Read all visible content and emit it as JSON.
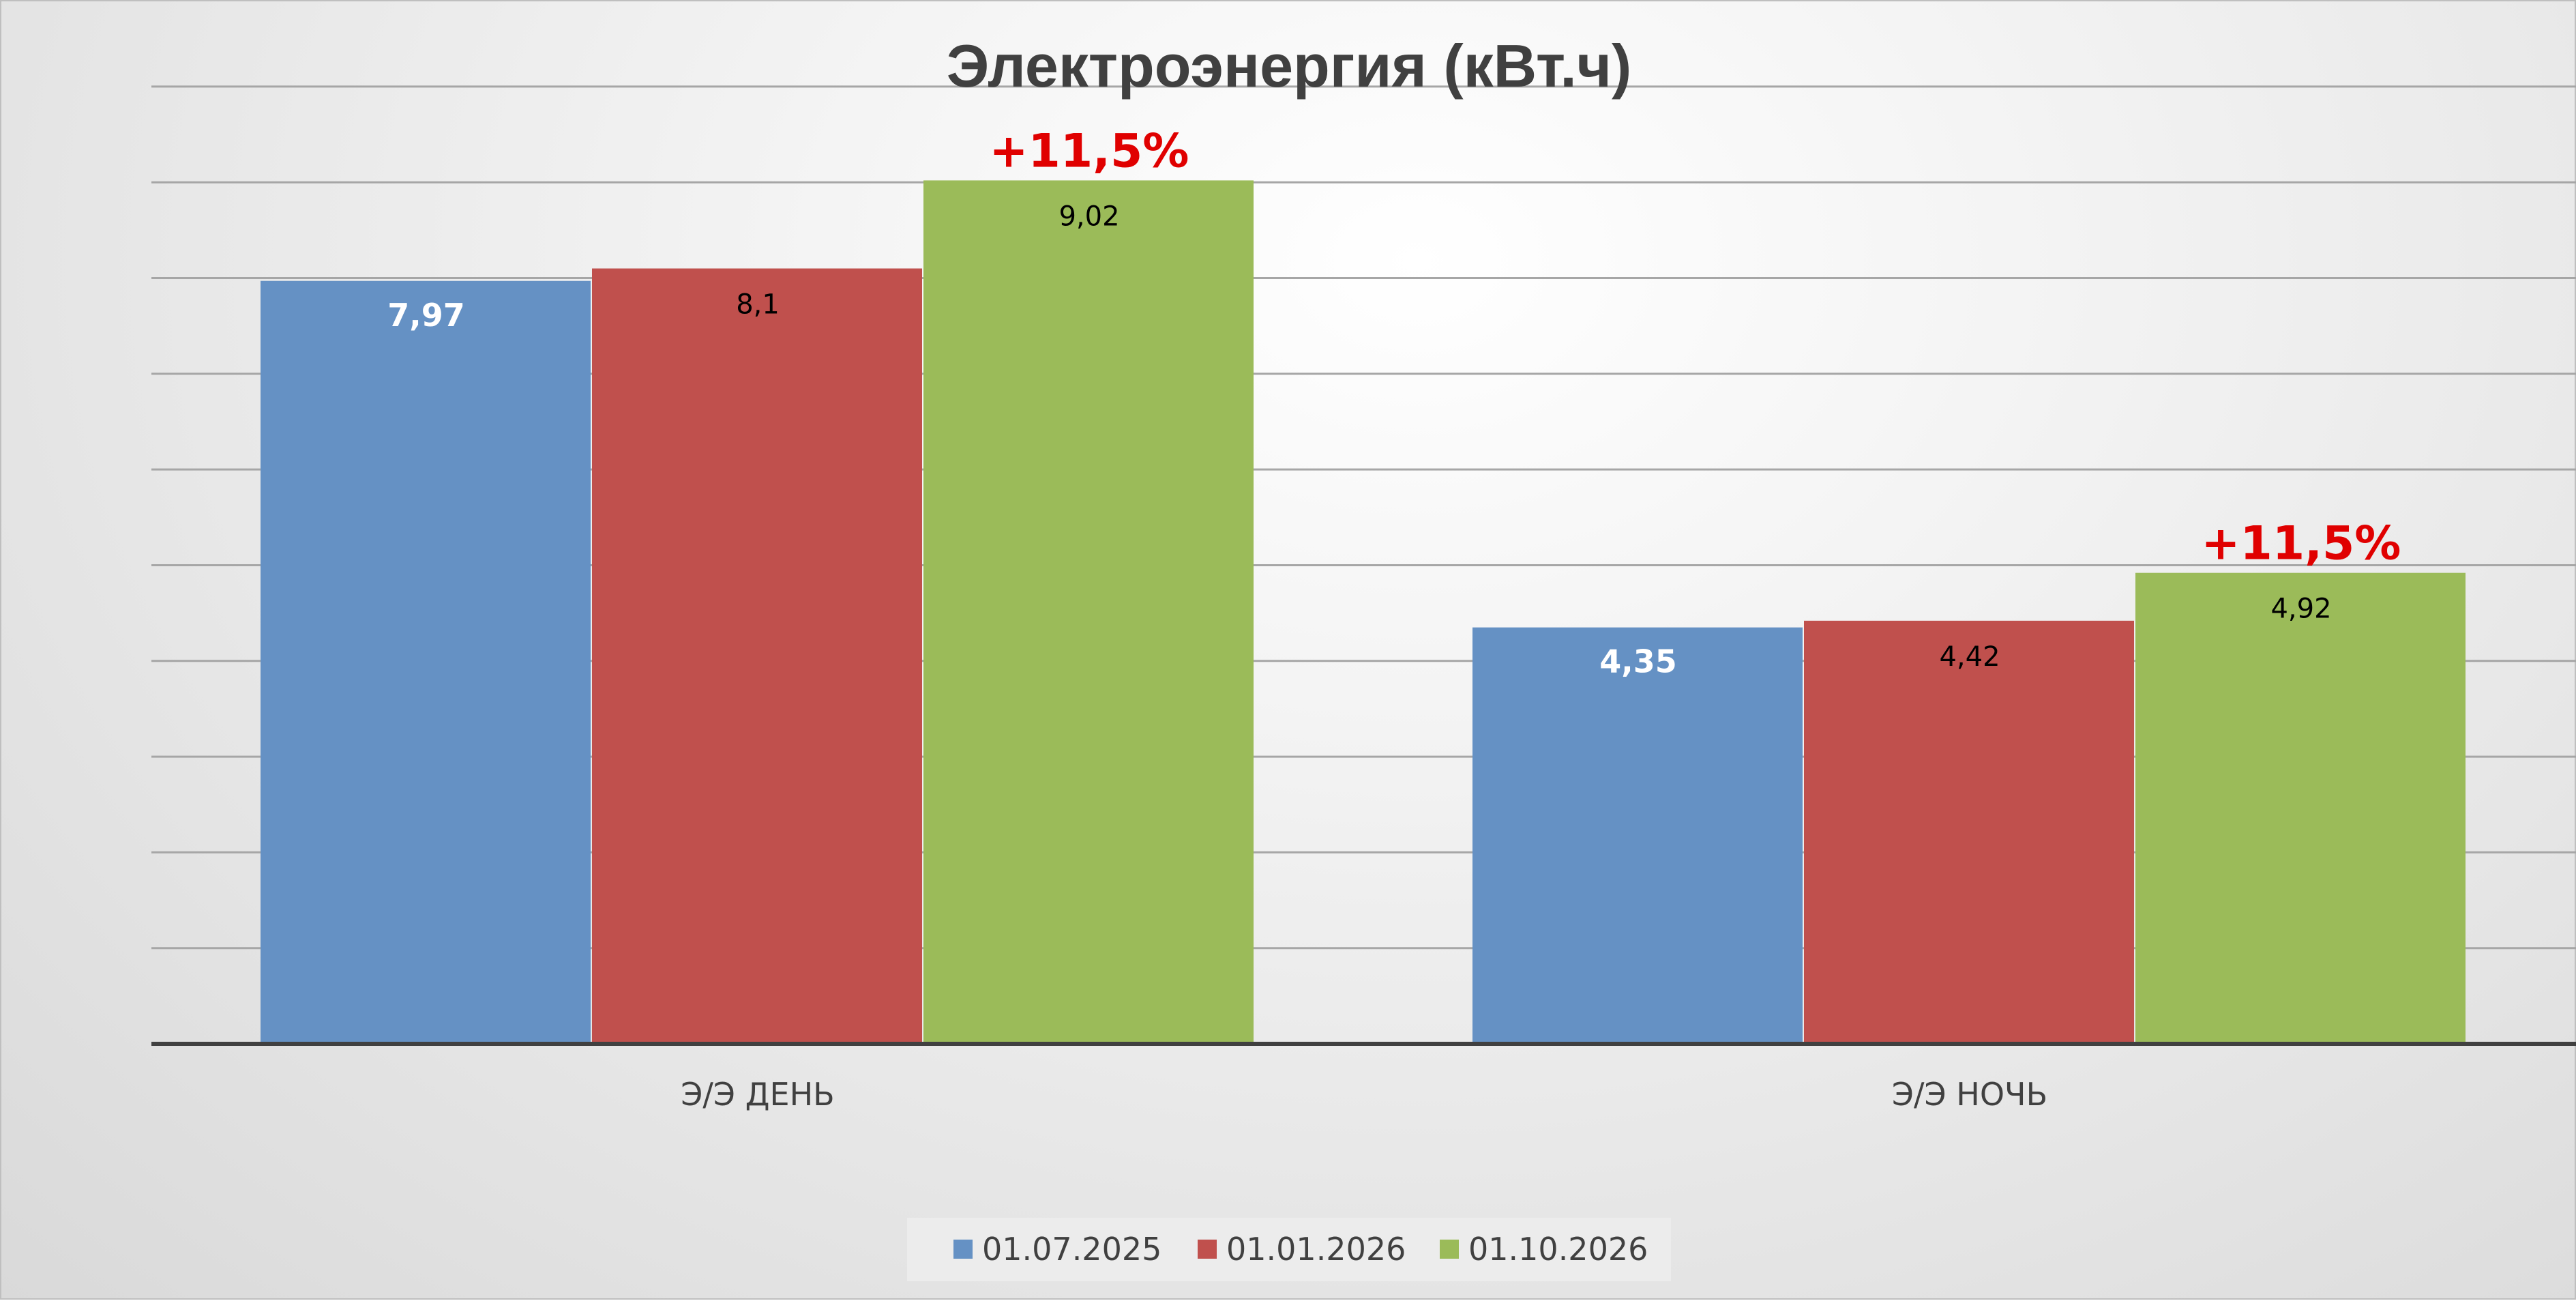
{
  "chart_data": {
    "type": "bar",
    "title": "Электроэнергия (кВт.ч)",
    "categories": [
      "Э/Э ДЕНЬ",
      "Э/Э НОЧЬ"
    ],
    "series": [
      {
        "name": "01.07.2025",
        "values": [
          7.97,
          4.35
        ],
        "labels": [
          "7,97",
          "4,35"
        ],
        "color": "#6591c4"
      },
      {
        "name": "01.01.2026",
        "values": [
          8.1,
          4.42
        ],
        "labels": [
          "8,1",
          "4,42"
        ],
        "color": "#c0504d"
      },
      {
        "name": "01.10.2026",
        "values": [
          9.02,
          4.92
        ],
        "labels": [
          "9,02",
          "4,92"
        ],
        "color": "#9bbb59"
      }
    ],
    "annotations": [
      {
        "category": 0,
        "series": 2,
        "text": "+11,5%",
        "color": "#e00000"
      },
      {
        "category": 1,
        "series": 2,
        "text": "+11,5%",
        "color": "#e00000"
      }
    ],
    "ylim": [
      0,
      10
    ],
    "grid": true,
    "y_tick_labels_shown": false,
    "legend_position": "bottom",
    "gridline_color": "#a6a6a6",
    "axis_color": "#404040"
  }
}
